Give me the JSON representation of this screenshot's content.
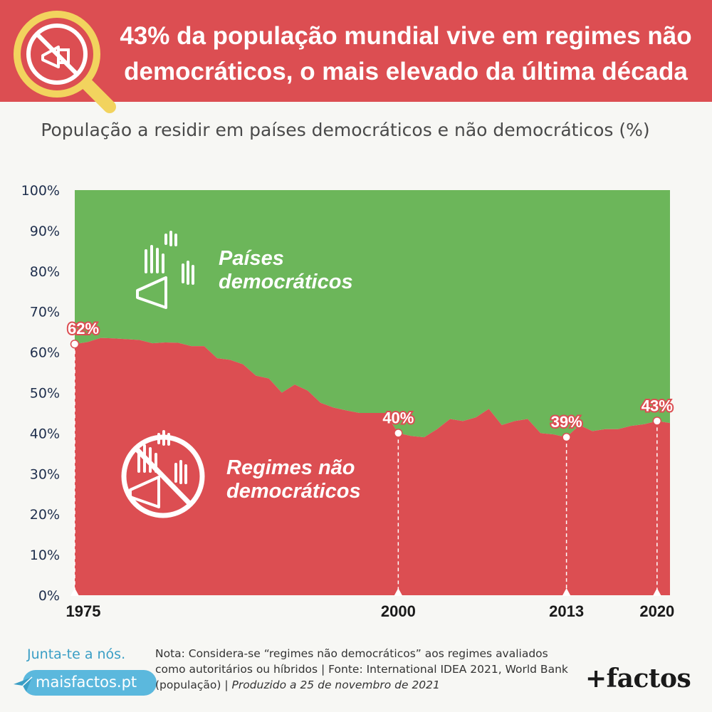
{
  "header": {
    "title_line1": "43% da população mundial vive em regimes não",
    "title_line2": "democráticos, o mais elevado da última década",
    "icon": "magnifier-no-protest-icon"
  },
  "chart_data": {
    "type": "area",
    "title": "População a residir em países democráticos e não democráticos (%)",
    "x_tick_labels": [
      "1975",
      "2000",
      "2013",
      "2020"
    ],
    "y_tick_labels": [
      "0%",
      "10%",
      "20%",
      "30%",
      "40%",
      "50%",
      "60%",
      "70%",
      "80%",
      "90%",
      "100%"
    ],
    "ylim": [
      0,
      100
    ],
    "xlim": [
      1975,
      2021
    ],
    "x": [
      1975,
      1976,
      1977,
      1978,
      1979,
      1980,
      1981,
      1982,
      1983,
      1984,
      1985,
      1986,
      1987,
      1988,
      1989,
      1990,
      1991,
      1992,
      1993,
      1994,
      1995,
      1996,
      1997,
      1998,
      1999,
      2000,
      2001,
      2002,
      2003,
      2004,
      2005,
      2006,
      2007,
      2008,
      2009,
      2010,
      2011,
      2012,
      2013,
      2014,
      2015,
      2016,
      2017,
      2018,
      2019,
      2020,
      2021
    ],
    "series": [
      {
        "name": "Regimes não democráticos",
        "color": "#dc4e52",
        "values": [
          62,
          62.5,
          63.5,
          63.4,
          63.2,
          63,
          62.2,
          62.4,
          62.3,
          61.5,
          61.5,
          58.5,
          58.1,
          57,
          54.2,
          53.5,
          50,
          52,
          50.5,
          47.5,
          46.3,
          45.6,
          45,
          45,
          45,
          40,
          39.3,
          39,
          41,
          43.5,
          43,
          43.9,
          46,
          42,
          43,
          43.5,
          40,
          39.7,
          39,
          42,
          40.5,
          41,
          41,
          41.8,
          42.2,
          43,
          42.5
        ]
      },
      {
        "name": "Países democráticos",
        "color": "#6cb65a",
        "values": [
          38,
          37.5,
          36.5,
          36.6,
          36.8,
          37,
          37.8,
          37.6,
          37.7,
          38.5,
          38.5,
          41.5,
          41.9,
          43,
          45.8,
          46.5,
          50,
          48,
          49.5,
          52.5,
          53.7,
          54.4,
          55,
          55,
          55,
          60,
          60.7,
          61,
          59,
          56.5,
          57,
          56.1,
          54,
          58,
          57,
          56.5,
          60,
          60.3,
          61,
          58,
          59.5,
          59,
          59,
          58.2,
          57.8,
          57,
          57.5
        ]
      }
    ],
    "annotations": [
      {
        "year": 1975,
        "value": 62,
        "label": "62%"
      },
      {
        "year": 2000,
        "value": 40,
        "label": "40%"
      },
      {
        "year": 2013,
        "value": 39,
        "label": "39%"
      },
      {
        "year": 2020,
        "value": 43,
        "label": "43%"
      }
    ],
    "area_labels": [
      {
        "line1": "Países",
        "line2": "democráticos",
        "icon": "raised-hands-megaphone-icon"
      },
      {
        "line1": "Regimes não",
        "line2": "democráticos",
        "icon": "no-protest-icon"
      }
    ]
  },
  "footer": {
    "cta": "Junta-te a nós.",
    "site": "maisfactos.pt",
    "note": "Nota: Considera-se “regimes não democráticos” aos regimes avaliados como autoritários ou híbridos | Fonte: International IDEA 2021, World Bank (população) | ",
    "produced": "Produzido a 25 de novembro de 2021",
    "brand": "+factos"
  }
}
